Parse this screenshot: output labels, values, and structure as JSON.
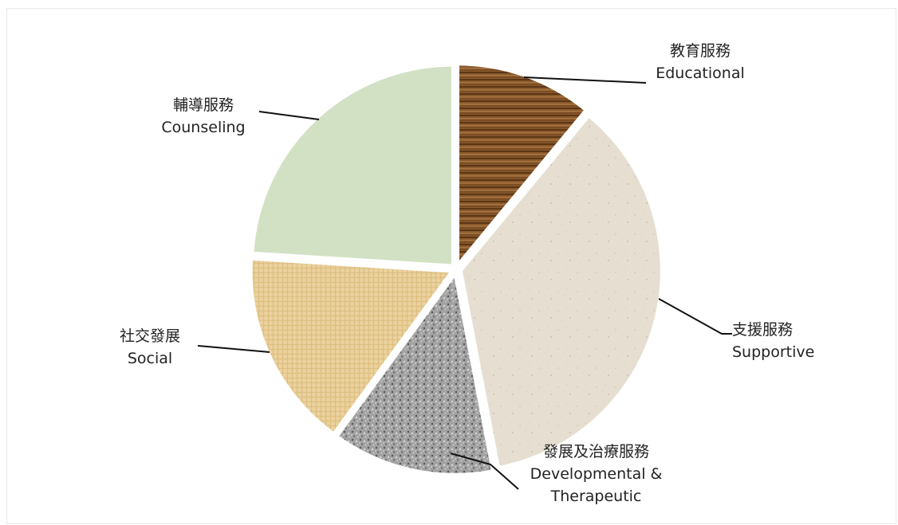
{
  "chart_data": {
    "type": "pie",
    "title": "",
    "slices": [
      {
        "zh": "教育服務",
        "en": "Educational",
        "value": 11,
        "color": "#8a5a2b"
      },
      {
        "zh": "支援服務",
        "en": "Supportive",
        "value": 36,
        "color": "#e6dfd1"
      },
      {
        "zh": "發展及治療服務",
        "en": "Developmental &",
        "en2": "Therapeutic",
        "value": 13,
        "color": "#9b9b9b"
      },
      {
        "zh": "社交發展",
        "en": "Social",
        "value": 16,
        "color": "#e9cf9a"
      },
      {
        "zh": "輔導服務",
        "en": "Counseling",
        "value": 24,
        "color": "#d2e1c4"
      }
    ]
  }
}
